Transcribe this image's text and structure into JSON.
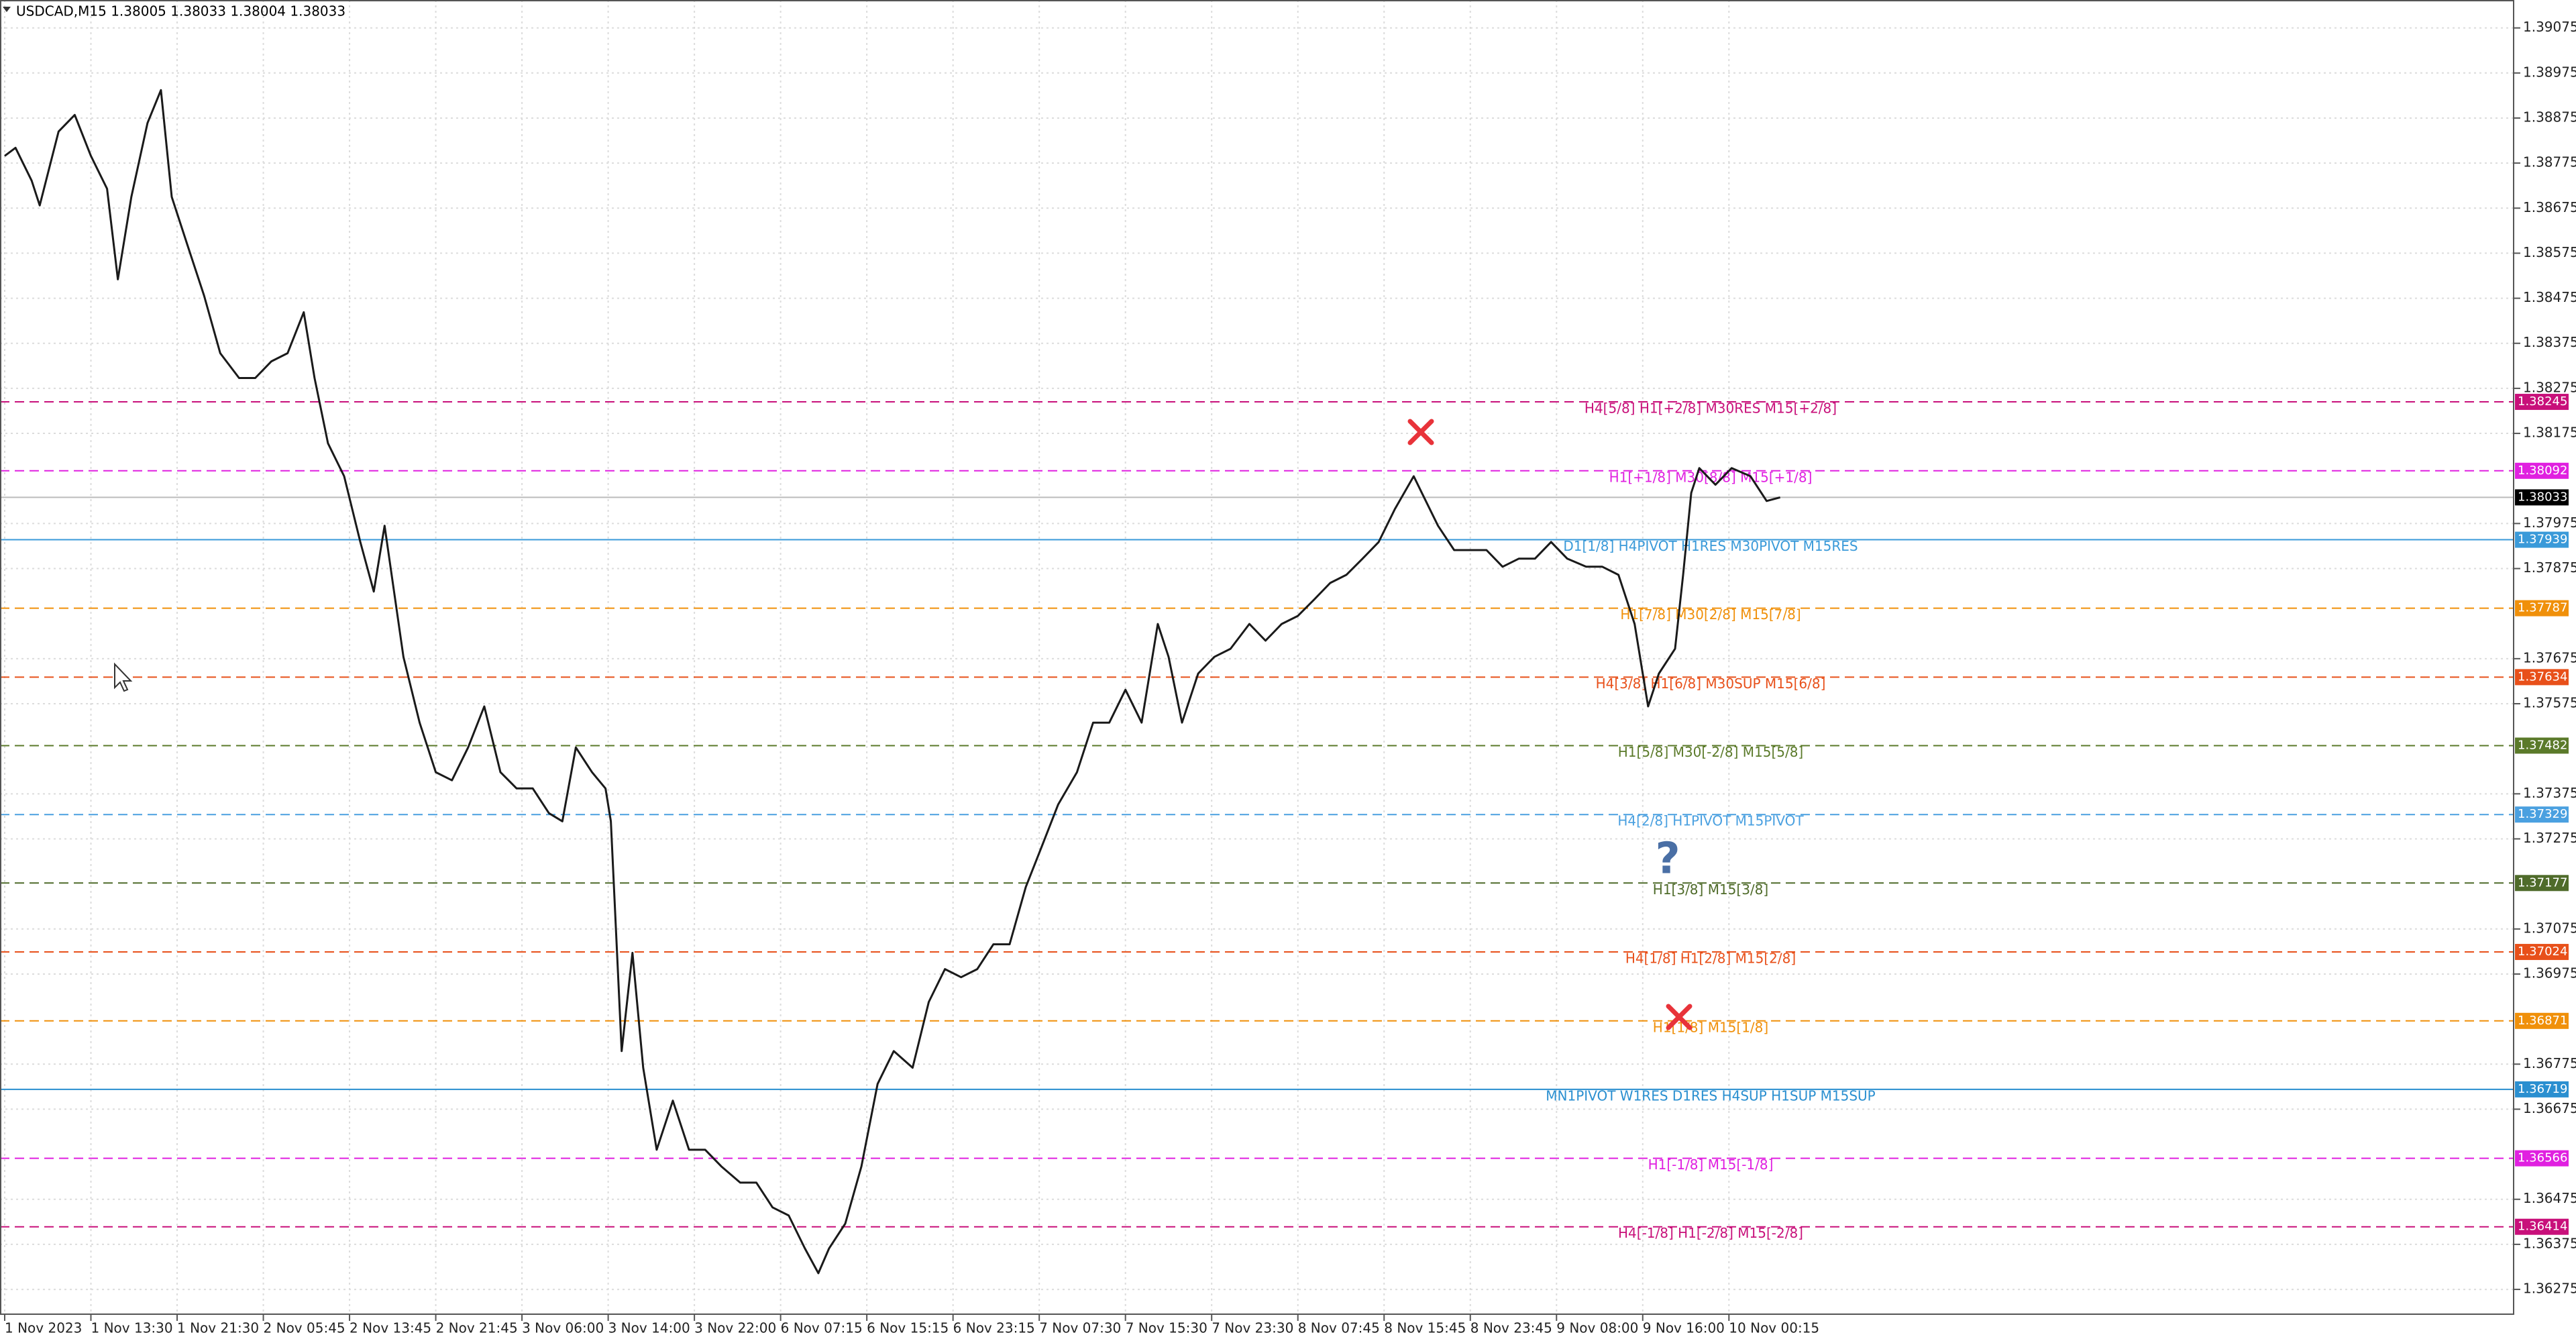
{
  "chart_data": {
    "type": "line",
    "title": "USDCAD,M15  1.38005 1.38033 1.38004 1.38033",
    "color": "#1a1a1a",
    "grid": true,
    "x": [
      0,
      4,
      10,
      13,
      20,
      26,
      32,
      38,
      42,
      47,
      53,
      58,
      62,
      68,
      74,
      80,
      87,
      93,
      99,
      105,
      111,
      115,
      120,
      126,
      132,
      137,
      141,
      148,
      154,
      160,
      166,
      172,
      178,
      184,
      190,
      196,
      202,
      207,
      212,
      218,
      223,
      225,
      229,
      233,
      237,
      242,
      248,
      254,
      260,
      266,
      273,
      279,
      285,
      291,
      297,
      302,
      306,
      312,
      318,
      324,
      330,
      337,
      343,
      349,
      355,
      361,
      367,
      373,
      379,
      385,
      391,
      398,
      404,
      410,
      416,
      422,
      428,
      432,
      437,
      443,
      449,
      455,
      462,
      468,
      474,
      480,
      486,
      492,
      498,
      504,
      510,
      516,
      523,
      526,
      532,
      538,
      544,
      550,
      556,
      562,
      568,
      574,
      580,
      587,
      593,
      599,
      605,
      610,
      614,
      620,
      623,
      626,
      629,
      635,
      641,
      648,
      654,
      659
    ],
    "values": [
      1.38791,
      1.38809,
      1.38736,
      1.38681,
      1.38845,
      1.38882,
      1.38791,
      1.38718,
      1.38517,
      1.387,
      1.38864,
      1.38937,
      1.387,
      1.3859,
      1.38481,
      1.38353,
      1.38298,
      1.38298,
      1.38335,
      1.38353,
      1.38444,
      1.38298,
      1.38153,
      1.3808,
      1.37934,
      1.37824,
      1.3797,
      1.37679,
      1.37533,
      1.37423,
      1.37405,
      1.37478,
      1.37569,
      1.37423,
      1.37387,
      1.37387,
      1.37332,
      1.37314,
      1.37478,
      1.37423,
      1.37387,
      1.37314,
      1.36804,
      1.37022,
      1.36767,
      1.36585,
      1.36694,
      1.36585,
      1.36585,
      1.36548,
      1.36512,
      1.36512,
      1.36457,
      1.36439,
      1.36366,
      1.36311,
      1.36366,
      1.36421,
      1.36548,
      1.36731,
      1.36804,
      1.36767,
      1.36913,
      1.36986,
      1.36968,
      1.36986,
      1.37041,
      1.37041,
      1.37168,
      1.37259,
      1.37351,
      1.37423,
      1.37533,
      1.37533,
      1.37606,
      1.37533,
      1.37752,
      1.37679,
      1.37533,
      1.37642,
      1.37679,
      1.37697,
      1.37752,
      1.37715,
      1.37752,
      1.3777,
      1.37806,
      1.37843,
      1.37861,
      1.37897,
      1.37934,
      1.38007,
      1.3808,
      1.38043,
      1.3797,
      1.37916,
      1.37916,
      1.37916,
      1.37879,
      1.37897,
      1.37897,
      1.37934,
      1.37897,
      1.37879,
      1.37879,
      1.37861,
      1.37752,
      1.37569,
      1.37642,
      1.37697,
      1.37861,
      1.38043,
      1.38098,
      1.38061,
      1.38098,
      1.3808,
      1.38025,
      1.38033
    ],
    "xlim": [
      0,
      932
    ],
    "xticks": [
      {
        "value": 0,
        "label": "1 Nov 2023"
      },
      {
        "value": 32,
        "label": "1 Nov 13:30"
      },
      {
        "value": 64,
        "label": "1 Nov 21:30"
      },
      {
        "value": 96,
        "label": "2 Nov 05:45"
      },
      {
        "value": 128,
        "label": "2 Nov 13:45"
      },
      {
        "value": 160,
        "label": "2 Nov 21:45"
      },
      {
        "value": 192,
        "label": "3 Nov 06:00"
      },
      {
        "value": 224,
        "label": "3 Nov 14:00"
      },
      {
        "value": 256,
        "label": "3 Nov 22:00"
      },
      {
        "value": 288,
        "label": "6 Nov 07:15"
      },
      {
        "value": 320,
        "label": "6 Nov 15:15"
      },
      {
        "value": 352,
        "label": "6 Nov 23:15"
      },
      {
        "value": 384,
        "label": "7 Nov 07:30"
      },
      {
        "value": 416,
        "label": "7 Nov 15:30"
      },
      {
        "value": 448,
        "label": "7 Nov 23:30"
      },
      {
        "value": 480,
        "label": "8 Nov 07:45"
      },
      {
        "value": 512,
        "label": "8 Nov 15:45"
      },
      {
        "value": 544,
        "label": "8 Nov 23:45"
      },
      {
        "value": 576,
        "label": "9 Nov 08:00"
      },
      {
        "value": 608,
        "label": "9 Nov 16:00"
      },
      {
        "value": 640,
        "label": "10 Nov 00:15"
      }
    ],
    "ylim": [
      1.3622,
      1.39137
    ],
    "yticks": [
      1.39075,
      1.38975,
      1.38875,
      1.38775,
      1.38675,
      1.38575,
      1.38475,
      1.38375,
      1.38275,
      1.38175,
      1.37975,
      1.37875,
      1.37675,
      1.37575,
      1.37375,
      1.37275,
      1.37075,
      1.36975,
      1.36775,
      1.36675,
      1.36475,
      1.36375,
      1.36275
    ],
    "last_price": {
      "value": 1.38033,
      "color": "#000000"
    },
    "levels": [
      {
        "value": 1.38245,
        "label": "H4[5/8] H1[+2/8] M30RES M15[+2/8]",
        "color": "#c8107a",
        "style": "dashed"
      },
      {
        "value": 1.38092,
        "label": "H1[+1/8] M30[8/8] M15[+1/8]",
        "color": "#e020e0",
        "style": "dashed"
      },
      {
        "value": 1.37939,
        "label": "D1[1/8] H4PIVOT H1RES M30PIVOT M15RES",
        "color": "#3a9ad9",
        "style": "solid"
      },
      {
        "value": 1.37787,
        "label": "H1[7/8] M30[2/8] M15[7/8]",
        "color": "#f0900a",
        "style": "dashed"
      },
      {
        "value": 1.37634,
        "label": "H4[3/8] H1[6/8] M30SUP M15[6/8]",
        "color": "#e8501a",
        "style": "dashed"
      },
      {
        "value": 1.37482,
        "label": "H1[5/8] M30[-2/8] M15[5/8]",
        "color": "#5b7a2a",
        "style": "dashed"
      },
      {
        "value": 1.37329,
        "label": "H4[2/8] H1PIVOT M15PIVOT",
        "color": "#4aa0e0",
        "style": "dashed"
      },
      {
        "value": 1.37177,
        "label": "H1[3/8] M15[3/8]",
        "color": "#4f6b2a",
        "style": "dashed"
      },
      {
        "value": 1.37024,
        "label": "H4[1/8] H1[2/8] M15[2/8]",
        "color": "#e8501a",
        "style": "dashed"
      },
      {
        "value": 1.36871,
        "label": "H1[1/8] M15[1/8]",
        "color": "#f0900a",
        "style": "dashed"
      },
      {
        "value": 1.36719,
        "label": "MN1PIVOT W1RES D1RES H4SUP H1SUP M15SUP",
        "color": "#2a8fd0",
        "style": "solid"
      },
      {
        "value": 1.36566,
        "label": "H1[-1/8] M15[-1/8]",
        "color": "#e020e0",
        "style": "dashed"
      },
      {
        "value": 1.36414,
        "label": "H4[-1/8] H1[-2/8] M15[-2/8]",
        "color": "#c8107a",
        "style": "dashed"
      }
    ]
  }
}
